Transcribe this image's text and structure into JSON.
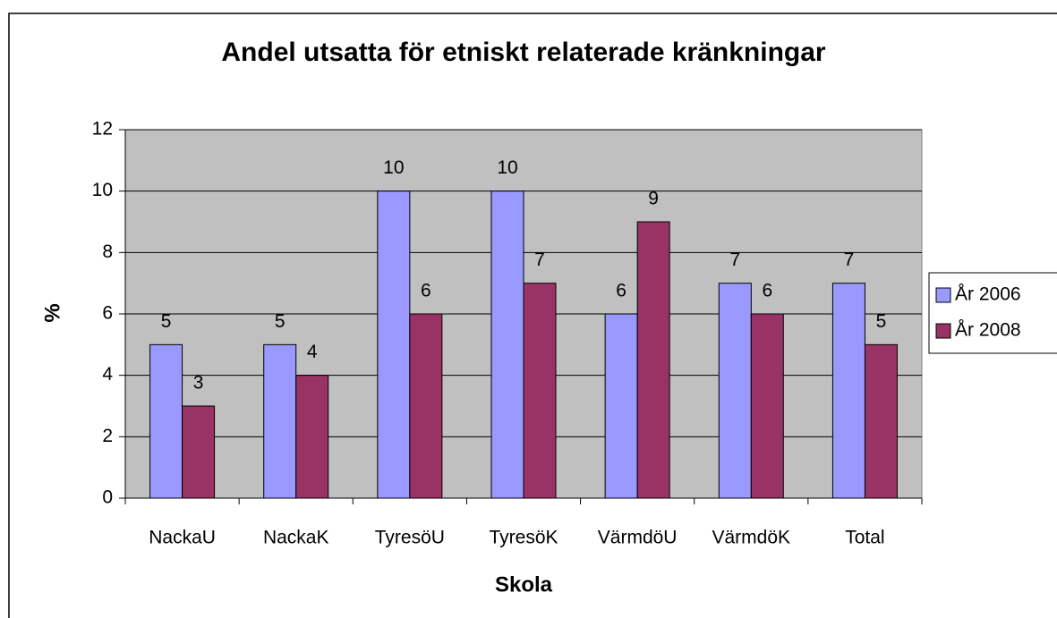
{
  "chart_data": {
    "type": "bar",
    "title": "Andel utsatta för etniskt relaterade kränkningar",
    "x_label": "Skola",
    "y_label": "%",
    "categories": [
      "NackaU",
      "NackaK",
      "TyresöU",
      "TyresöK",
      "VärmdöU",
      "VärmdöK",
      "Total"
    ],
    "series": [
      {
        "name": "År 2006",
        "color": "#9999ff",
        "values": [
          5,
          5,
          10,
          10,
          6,
          7,
          7
        ]
      },
      {
        "name": "År 2008",
        "color": "#993366",
        "values": [
          3,
          4,
          6,
          7,
          9,
          6,
          5
        ]
      }
    ],
    "ylim": [
      0,
      12
    ],
    "yticks": [
      0,
      2,
      4,
      6,
      8,
      10,
      12
    ],
    "grid": true,
    "legend": "right"
  }
}
